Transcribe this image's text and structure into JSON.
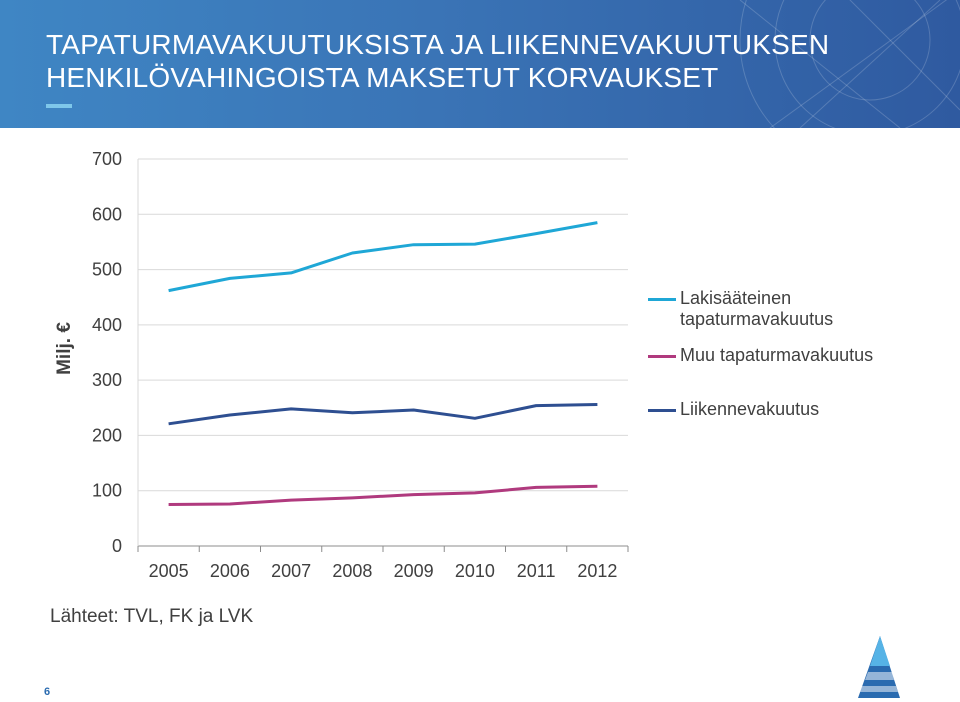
{
  "header": {
    "title_line1": "TAPATURMAVAKUUTUKSISTA JA LIIKENNEVAKUUTUKSEN",
    "title_line2": "HENKILÖVAHINGOISTA MAKSETUT KORVAUKSET"
  },
  "chart_data": {
    "type": "line",
    "title": "",
    "xlabel": "",
    "ylabel": "Milj. €",
    "x": [
      "2005",
      "2006",
      "2007",
      "2008",
      "2009",
      "2010",
      "2011",
      "2012"
    ],
    "ylim": [
      0,
      700
    ],
    "yticks": [
      "0",
      "100",
      "200",
      "300",
      "400",
      "500",
      "600",
      "700"
    ],
    "grid": true,
    "legend_position": "right",
    "series": [
      {
        "name": "Lakisääteinen tapaturmavakuutus",
        "color": "#1fa7d6",
        "values": [
          462,
          484,
          494,
          530,
          545,
          546,
          565,
          585
        ]
      },
      {
        "name": "Muu tapaturmavakuutus",
        "color": "#b03a7e",
        "values": [
          75,
          76,
          83,
          87,
          93,
          96,
          106,
          108
        ]
      },
      {
        "name": "Liikennevakuutus",
        "color": "#2e4f91",
        "values": [
          221,
          237,
          248,
          241,
          246,
          231,
          254,
          256
        ]
      }
    ]
  },
  "source": "Lähteet: TVL, FK ja LVK",
  "page_number": "6"
}
